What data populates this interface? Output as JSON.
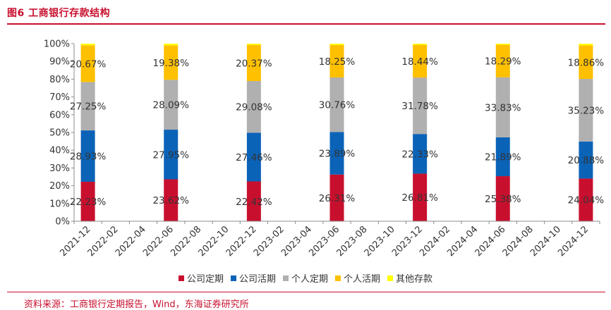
{
  "header": {
    "title": "图6  工商银行存款结构"
  },
  "footer": {
    "source": "资料来源：工商银行定期报告，Wind，东海证券研究所"
  },
  "chart_data": {
    "type": "bar",
    "stacked": true,
    "title": "",
    "xlabel": "",
    "ylabel": "",
    "ylim": [
      0,
      100
    ],
    "y_ticks": [
      "0%",
      "10%",
      "20%",
      "30%",
      "40%",
      "50%",
      "60%",
      "70%",
      "80%",
      "90%",
      "100%"
    ],
    "grid": false,
    "legend_position": "bottom",
    "categories": [
      "2021-12",
      "2022-02",
      "2022-04",
      "2022-06",
      "2022-08",
      "2022-10",
      "2022-12",
      "2023-02",
      "2023-04",
      "2023-06",
      "2023-08",
      "2023-10",
      "2023-12",
      "2024-02",
      "2024-04",
      "2024-06",
      "2024-08",
      "2024-10",
      "2024-12"
    ],
    "series": [
      {
        "name": "公司定期",
        "color": "#c8102e",
        "values": [
          22.23,
          null,
          null,
          23.62,
          null,
          null,
          22.42,
          null,
          null,
          26.31,
          null,
          null,
          26.81,
          null,
          null,
          25.38,
          null,
          null,
          24.04
        ],
        "labels": [
          "22.23%",
          "",
          "",
          "23.62%",
          "",
          "",
          "22.42%",
          "",
          "",
          "26.31%",
          "",
          "",
          "26.81%",
          "",
          "",
          "25.38%",
          "",
          "",
          "24.04%"
        ]
      },
      {
        "name": "公司活期",
        "color": "#0b63b8",
        "values": [
          28.93,
          null,
          null,
          27.95,
          null,
          null,
          27.46,
          null,
          null,
          23.89,
          null,
          null,
          22.33,
          null,
          null,
          21.89,
          null,
          null,
          20.88
        ],
        "labels": [
          "28.93%",
          "",
          "",
          "27.95%",
          "",
          "",
          "27.46%",
          "",
          "",
          "23.89%",
          "",
          "",
          "22.33%",
          "",
          "",
          "21.89%",
          "",
          "",
          "20.88%"
        ]
      },
      {
        "name": "个人定期",
        "color": "#b0b0b0",
        "values": [
          27.25,
          null,
          null,
          28.09,
          null,
          null,
          29.08,
          null,
          null,
          30.76,
          null,
          null,
          31.78,
          null,
          null,
          33.83,
          null,
          null,
          35.23
        ],
        "labels": [
          "27.25%",
          "",
          "",
          "28.09%",
          "",
          "",
          "29.08%",
          "",
          "",
          "30.76%",
          "",
          "",
          "31.78%",
          "",
          "",
          "33.83%",
          "",
          "",
          "35.23%"
        ]
      },
      {
        "name": "个人活期",
        "color": "#ffc000",
        "values": [
          20.67,
          null,
          null,
          19.38,
          null,
          null,
          20.37,
          null,
          null,
          18.25,
          null,
          null,
          18.44,
          null,
          null,
          18.29,
          null,
          null,
          18.86
        ],
        "labels": [
          "20.67%",
          "",
          "",
          "19.38%",
          "",
          "",
          "20.37%",
          "",
          "",
          "18.25%",
          "",
          "",
          "18.44%",
          "",
          "",
          "18.29%",
          "",
          "",
          "18.86%"
        ]
      },
      {
        "name": "其他存款",
        "color": "#ffff00",
        "values": [
          0.92,
          null,
          null,
          0.96,
          null,
          null,
          0.67,
          null,
          null,
          0.79,
          null,
          null,
          0.64,
          null,
          null,
          0.61,
          null,
          null,
          0.99
        ],
        "labels": [
          "",
          "",
          "",
          "",
          "",
          "",
          "",
          "",
          "",
          "",
          "",
          "",
          "",
          "",
          "",
          "",
          "",
          "",
          ""
        ]
      }
    ]
  }
}
